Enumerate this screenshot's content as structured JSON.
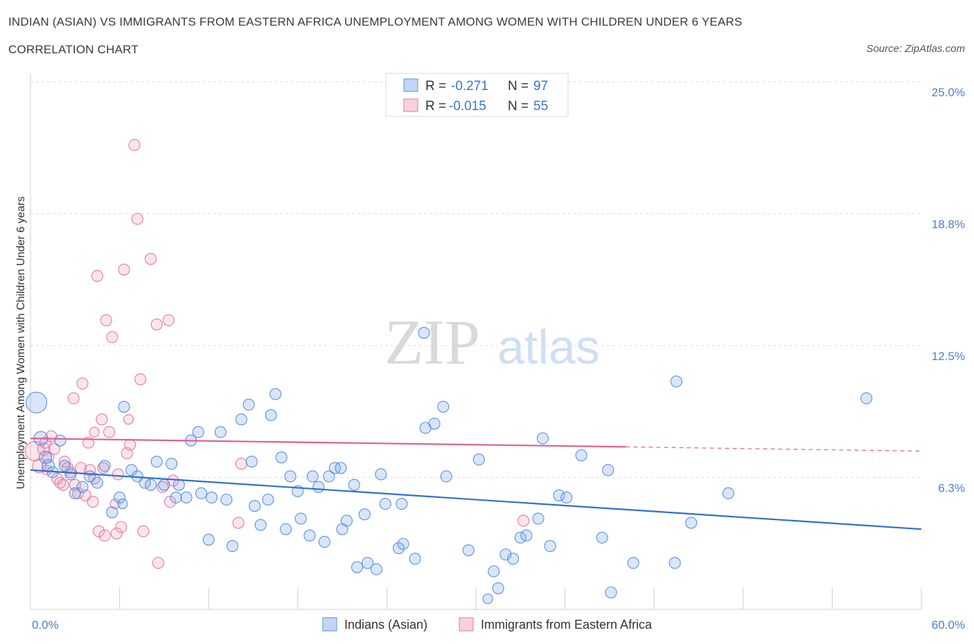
{
  "title": "INDIAN (ASIAN) VS IMMIGRANTS FROM EASTERN AFRICA UNEMPLOYMENT AMONG WOMEN WITH CHILDREN UNDER 6 YEARS",
  "subtitle": "CORRELATION CHART",
  "source": "Source: ZipAtlas.com",
  "watermark": {
    "zip": "ZIP",
    "atlas": "atlas"
  },
  "colors": {
    "blue": "#5b8fe0",
    "blue_fill": "rgba(120,165,235,0.28)",
    "blue_line": "#2f6fd0",
    "pink": "#e47aa0",
    "pink_fill": "rgba(240,150,180,0.25)",
    "pink_line": "#e0608e"
  },
  "legend_box": {
    "row1": {
      "r_label": "R = ",
      "r_value": "-0.271",
      "n_label": "N = ",
      "n_value": "97"
    },
    "row2": {
      "r_label": "R = ",
      "r_value": "-0.015",
      "n_label": "N = ",
      "n_value": "55"
    }
  },
  "chart_data": {
    "type": "scatter",
    "title": "INDIAN (ASIAN) VS IMMIGRANTS FROM EASTERN AFRICA UNEMPLOYMENT AMONG WOMEN WITH CHILDREN UNDER 6 YEARS",
    "subtitle": "CORRELATION CHART",
    "xlabel": "",
    "ylabel": "Unemployment Among Women with Children Under 6 years",
    "xlim": [
      0,
      60
    ],
    "ylim": [
      0,
      25
    ],
    "x_tick_labels": [
      "0.0%",
      "60.0%"
    ],
    "y_tick_labels": [
      "6.3%",
      "12.5%",
      "18.8%",
      "25.0%"
    ],
    "y_ticks": [
      6.25,
      12.5,
      18.75,
      25.0
    ],
    "grid": true,
    "legend_position": "bottom",
    "series": [
      {
        "name": "Indians (Asian)",
        "r": -0.271,
        "n": 97,
        "trend": {
          "x0": 0,
          "y0": 6.6,
          "x1": 60,
          "y1": 3.8,
          "dashed_from": null
        },
        "points": [
          [
            0.4,
            9.8,
            14
          ],
          [
            0.7,
            8.1,
            9
          ],
          [
            1.0,
            7.2,
            8
          ],
          [
            1.2,
            6.8,
            8
          ],
          [
            1.5,
            6.5,
            7
          ],
          [
            2.0,
            8.0,
            7
          ],
          [
            2.3,
            6.8,
            7
          ],
          [
            2.7,
            6.4,
            7
          ],
          [
            3.0,
            5.5,
            7
          ],
          [
            3.5,
            5.8,
            7
          ],
          [
            4.0,
            6.3,
            7
          ],
          [
            4.5,
            6.0,
            7
          ],
          [
            5.0,
            6.8,
            7
          ],
          [
            5.5,
            4.6,
            7
          ],
          [
            6.0,
            5.3,
            7
          ],
          [
            6.3,
            9.6,
            7
          ],
          [
            6.8,
            6.6,
            7
          ],
          [
            7.2,
            6.3,
            7
          ],
          [
            7.7,
            6.0,
            7
          ],
          [
            8.1,
            5.9,
            7
          ],
          [
            8.5,
            7.0,
            7
          ],
          [
            9.0,
            5.9,
            7
          ],
          [
            9.5,
            6.9,
            7
          ],
          [
            10.0,
            5.9,
            7
          ],
          [
            10.5,
            5.3,
            7
          ],
          [
            10.8,
            8.0,
            7
          ],
          [
            11.3,
            8.4,
            7
          ],
          [
            11.5,
            5.5,
            7
          ],
          [
            12.0,
            3.3,
            7
          ],
          [
            12.2,
            5.3,
            7
          ],
          [
            12.8,
            8.4,
            7
          ],
          [
            13.2,
            5.2,
            7
          ],
          [
            13.6,
            3.0,
            7
          ],
          [
            14.2,
            9.0,
            7
          ],
          [
            14.7,
            9.7,
            7
          ],
          [
            14.9,
            7.0,
            7
          ],
          [
            15.1,
            4.9,
            7
          ],
          [
            15.5,
            4.0,
            7
          ],
          [
            16.0,
            5.2,
            7
          ],
          [
            16.2,
            9.2,
            7
          ],
          [
            16.5,
            10.2,
            7
          ],
          [
            16.9,
            7.2,
            7
          ],
          [
            17.2,
            3.8,
            7
          ],
          [
            17.5,
            6.3,
            7
          ],
          [
            18.0,
            5.6,
            7
          ],
          [
            18.2,
            4.3,
            7
          ],
          [
            18.8,
            3.5,
            7
          ],
          [
            19.0,
            6.3,
            7
          ],
          [
            19.4,
            5.8,
            7
          ],
          [
            19.8,
            3.2,
            7
          ],
          [
            20.1,
            6.3,
            7
          ],
          [
            20.5,
            6.7,
            7
          ],
          [
            20.9,
            6.7,
            7
          ],
          [
            21.0,
            3.8,
            7
          ],
          [
            21.3,
            4.2,
            7
          ],
          [
            21.8,
            5.9,
            7
          ],
          [
            22.0,
            2.0,
            7
          ],
          [
            22.5,
            4.5,
            7
          ],
          [
            22.7,
            2.2,
            7
          ],
          [
            23.3,
            1.9,
            7
          ],
          [
            23.6,
            6.4,
            7
          ],
          [
            23.9,
            5.0,
            7
          ],
          [
            24.8,
            2.9,
            7
          ],
          [
            25.0,
            5.0,
            7
          ],
          [
            25.1,
            3.1,
            7
          ],
          [
            25.9,
            2.4,
            7
          ],
          [
            26.6,
            8.6,
            7
          ],
          [
            27.2,
            8.8,
            7
          ],
          [
            27.8,
            9.6,
            7
          ],
          [
            28.0,
            6.3,
            7
          ],
          [
            29.5,
            2.8,
            7
          ],
          [
            30.2,
            7.1,
            7
          ],
          [
            31.2,
            1.8,
            7
          ],
          [
            31.5,
            1.0,
            7
          ],
          [
            32.0,
            2.6,
            7
          ],
          [
            32.5,
            2.4,
            7
          ],
          [
            33.0,
            3.4,
            7
          ],
          [
            33.4,
            3.5,
            7
          ],
          [
            34.2,
            4.3,
            7
          ],
          [
            34.5,
            8.1,
            7
          ],
          [
            35.0,
            3.0,
            7
          ],
          [
            35.6,
            5.4,
            7
          ],
          [
            36.1,
            5.3,
            7
          ],
          [
            37.1,
            7.3,
            7
          ],
          [
            38.5,
            3.4,
            7
          ],
          [
            38.9,
            6.6,
            7
          ],
          [
            39.1,
            0.8,
            7
          ],
          [
            40.6,
            2.2,
            7
          ],
          [
            43.5,
            10.8,
            7
          ],
          [
            44.5,
            4.1,
            7
          ],
          [
            47.0,
            5.5,
            7
          ],
          [
            56.3,
            10.0,
            7
          ],
          [
            43.4,
            2.2,
            7
          ],
          [
            30.8,
            0.5,
            6
          ],
          [
            26.5,
            13.1,
            7
          ],
          [
            9.8,
            5.3,
            7
          ],
          [
            6.2,
            5.0,
            6
          ]
        ]
      },
      {
        "name": "Immigrants from Eastern Africa",
        "r": -0.015,
        "n": 55,
        "trend": {
          "x0": 0,
          "y0": 8.1,
          "x1": 60,
          "y1": 7.5,
          "dashed_from": 40.1
        },
        "points": [
          [
            0.3,
            7.5,
            13
          ],
          [
            0.6,
            6.8,
            9
          ],
          [
            0.9,
            7.6,
            8
          ],
          [
            1.0,
            7.9,
            7
          ],
          [
            1.2,
            7.2,
            7
          ],
          [
            1.4,
            8.2,
            7
          ],
          [
            1.6,
            7.6,
            7
          ],
          [
            1.8,
            6.2,
            7
          ],
          [
            2.0,
            6.0,
            7
          ],
          [
            2.2,
            5.9,
            7
          ],
          [
            2.3,
            7.0,
            7
          ],
          [
            2.5,
            6.7,
            7
          ],
          [
            2.7,
            6.5,
            7
          ],
          [
            2.9,
            10.0,
            7
          ],
          [
            3.0,
            5.9,
            7
          ],
          [
            3.2,
            5.5,
            7
          ],
          [
            3.4,
            6.7,
            7
          ],
          [
            3.5,
            10.7,
            7
          ],
          [
            3.7,
            5.4,
            7
          ],
          [
            3.9,
            7.9,
            7
          ],
          [
            4.0,
            6.6,
            7
          ],
          [
            4.2,
            5.1,
            7
          ],
          [
            4.3,
            6.2,
            7
          ],
          [
            4.5,
            15.8,
            7
          ],
          [
            4.6,
            3.7,
            7
          ],
          [
            4.8,
            9.0,
            7
          ],
          [
            4.9,
            6.7,
            7
          ],
          [
            5.0,
            3.5,
            7
          ],
          [
            5.1,
            13.7,
            7
          ],
          [
            5.3,
            8.4,
            7
          ],
          [
            5.5,
            12.9,
            7
          ],
          [
            5.8,
            3.6,
            7
          ],
          [
            5.9,
            6.4,
            7
          ],
          [
            6.1,
            3.9,
            7
          ],
          [
            6.3,
            16.1,
            7
          ],
          [
            6.5,
            7.4,
            7
          ],
          [
            6.7,
            7.8,
            7
          ],
          [
            7.0,
            22.0,
            7
          ],
          [
            7.2,
            18.5,
            7
          ],
          [
            7.4,
            10.9,
            7
          ],
          [
            7.6,
            3.7,
            7
          ],
          [
            8.1,
            16.6,
            7
          ],
          [
            8.5,
            13.5,
            7
          ],
          [
            8.9,
            5.8,
            7
          ],
          [
            9.3,
            13.7,
            7
          ],
          [
            9.4,
            5.1,
            7
          ],
          [
            9.6,
            6.1,
            7
          ],
          [
            4.3,
            8.4,
            6
          ],
          [
            5.7,
            5.0,
            6
          ],
          [
            6.6,
            9.0,
            6
          ],
          [
            14.0,
            4.1,
            7
          ],
          [
            14.2,
            6.9,
            7
          ],
          [
            33.2,
            4.2,
            7
          ],
          [
            8.6,
            2.2,
            7
          ],
          [
            1.1,
            6.6,
            6
          ]
        ]
      }
    ]
  }
}
